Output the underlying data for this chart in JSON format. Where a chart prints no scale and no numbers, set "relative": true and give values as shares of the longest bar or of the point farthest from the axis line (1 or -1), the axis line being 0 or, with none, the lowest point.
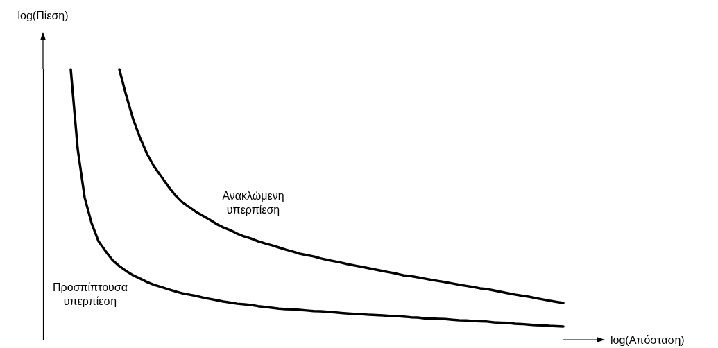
{
  "chart_data": {
    "type": "line",
    "relative": true,
    "xlabel": "log(Απόσταση)",
    "ylabel": "log(Πίεση)",
    "legend": false,
    "grid": false,
    "marker": "none",
    "line_style": "solid",
    "categories": [
      null,
      null,
      null,
      null,
      null,
      null,
      null,
      null,
      null,
      null,
      null,
      null,
      null,
      null,
      null,
      null,
      null,
      null,
      null,
      null,
      null,
      null,
      null,
      null,
      null,
      null,
      null,
      null,
      null,
      null,
      null,
      null,
      null,
      null,
      null,
      null,
      null,
      null,
      null,
      null,
      null,
      null,
      null,
      null,
      null,
      null,
      null,
      null,
      null,
      null,
      null,
      null,
      null,
      null,
      null,
      null,
      null,
      null,
      null,
      null,
      null,
      null,
      null,
      null,
      null,
      null,
      null,
      null,
      null,
      null,
      null,
      null,
      null,
      null,
      null,
      null
    ],
    "series": [
      {
        "name": "Προσπίπτουσα υπερπίεση",
        "color": "#000000",
        "values": [
          null,
          null,
          null,
          null,
          1,
          0.705,
          0.526,
          0.431,
          0.364,
          0.328,
          0.295,
          0.272,
          0.254,
          0.238,
          0.226,
          0.213,
          0.203,
          0.195,
          0.187,
          0.179,
          0.172,
          0.167,
          0.162,
          0.156,
          0.151,
          0.146,
          0.141,
          0.137,
          0.133,
          0.131,
          0.128,
          0.124,
          0.121,
          0.118,
          0.115,
          0.113,
          0.112,
          0.11,
          0.108,
          0.106,
          0.105,
          0.103,
          0.101,
          0.099,
          0.097,
          0.095,
          0.094,
          0.092,
          0.091,
          0.09,
          0.088,
          0.087,
          0.085,
          0.083,
          0.082,
          0.079,
          0.078,
          0.077,
          0.076,
          0.074,
          0.072,
          0.071,
          0.069,
          0.068,
          0.067,
          0.064,
          0.063,
          0.062,
          0.059,
          0.058,
          0.056,
          0.054,
          0.053,
          0.051,
          0.05,
          0.049
        ]
      },
      {
        "name": "Ανακλώμενη υπερπίεση",
        "color": "#000000",
        "values": [
          null,
          null,
          null,
          null,
          null,
          null,
          null,
          null,
          null,
          null,
          null,
          1,
          0.903,
          0.815,
          0.746,
          0.687,
          0.641,
          0.605,
          0.569,
          0.536,
          0.51,
          0.492,
          0.474,
          0.459,
          0.444,
          0.428,
          0.415,
          0.405,
          0.392,
          0.382,
          0.374,
          0.364,
          0.356,
          0.349,
          0.341,
          0.333,
          0.326,
          0.318,
          0.313,
          0.308,
          0.301,
          0.295,
          0.29,
          0.285,
          0.279,
          0.274,
          0.269,
          0.264,
          0.259,
          0.254,
          0.249,
          0.244,
          0.238,
          0.235,
          0.231,
          0.226,
          0.221,
          0.217,
          0.213,
          0.208,
          0.203,
          0.199,
          0.195,
          0.19,
          0.187,
          0.182,
          0.177,
          0.172,
          0.167,
          0.163,
          0.159,
          0.154,
          0.149,
          0.144,
          0.14,
          0.136
        ]
      }
    ]
  }
}
